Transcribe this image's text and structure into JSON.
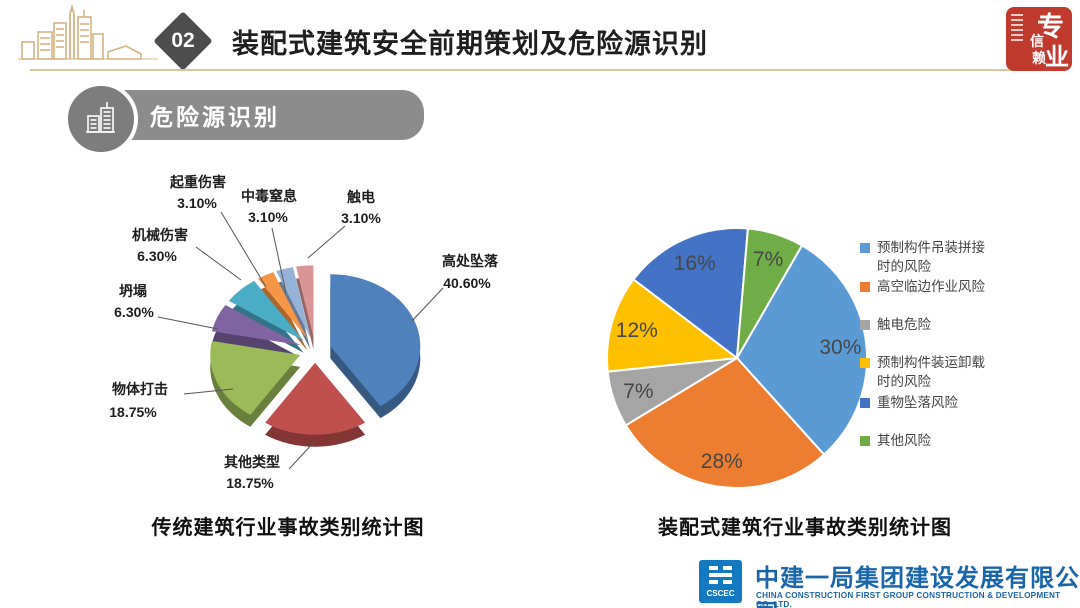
{
  "header": {
    "section_number": "02",
    "title": "装配式建筑安全前期策划及危险源识别",
    "seal_chars": [
      "专",
      "业",
      "信",
      "赖"
    ]
  },
  "banner": {
    "label": "危险源识别"
  },
  "chart_data": [
    {
      "type": "pie",
      "style": "3d-exploded",
      "title": "传统建筑行业事故类别统计图",
      "start_angle_deg": 0,
      "legend_position": "none",
      "slices": [
        {
          "label": "高处坠落",
          "value": 40.6,
          "pct": "40.60%",
          "color": "#4F81BD"
        },
        {
          "label": "其他类型",
          "value": 18.75,
          "pct": "18.75%",
          "color": "#C0504D"
        },
        {
          "label": "物体打击",
          "value": 18.75,
          "pct": "18.75%",
          "color": "#9BBB59"
        },
        {
          "label": "坍塌",
          "value": 6.3,
          "pct": "6.30%",
          "color": "#8064A2"
        },
        {
          "label": "机械伤害",
          "value": 6.3,
          "pct": "6.30%",
          "color": "#4BACC6"
        },
        {
          "label": "起重伤害",
          "value": 3.1,
          "pct": "3.10%",
          "color": "#F79646"
        },
        {
          "label": "中毒窒息",
          "value": 3.1,
          "pct": "3.10%",
          "color": "#95B3D7"
        },
        {
          "label": "触电",
          "value": 3.1,
          "pct": "3.10%",
          "color": "#D99694"
        }
      ]
    },
    {
      "type": "pie",
      "style": "flat",
      "title": "装配式建筑行业事故类别统计图",
      "start_angle_deg": 30,
      "legend_position": "right",
      "slices": [
        {
          "label": "预制构件吊装拼接时的风险",
          "legend_lines": [
            "预制构件吊装拼接",
            "时的风险"
          ],
          "value": 30,
          "pct": "30%",
          "color": "#5B9BD5"
        },
        {
          "label": "高空临边作业风险",
          "legend_lines": [
            "高空临边作业风险"
          ],
          "value": 28,
          "pct": "28%",
          "color": "#ED7D31"
        },
        {
          "label": "触电危险",
          "legend_lines": [
            "触电危险"
          ],
          "value": 7,
          "pct": "7%",
          "color": "#A5A5A5"
        },
        {
          "label": "预制构件装运卸载时的风险",
          "legend_lines": [
            "预制构件装运卸载",
            "时的风险"
          ],
          "value": 12,
          "pct": "12%",
          "color": "#FFC000"
        },
        {
          "label": "重物坠落风险",
          "legend_lines": [
            "重物坠落风险"
          ],
          "value": 16,
          "pct": "16%",
          "color": "#4472C4"
        },
        {
          "label": "其他风险",
          "legend_lines": [
            "其他风险"
          ],
          "value": 7,
          "pct": "7%",
          "color": "#70AD47"
        }
      ]
    }
  ],
  "footer": {
    "logo_text": "CSCEC",
    "company_cn": "中建一局集团建设发展有限公司",
    "company_en": "CHINA CONSTRUCTION FIRST GROUP CONSTRUCTION & DEVELOPMENT CO.,LTD."
  }
}
